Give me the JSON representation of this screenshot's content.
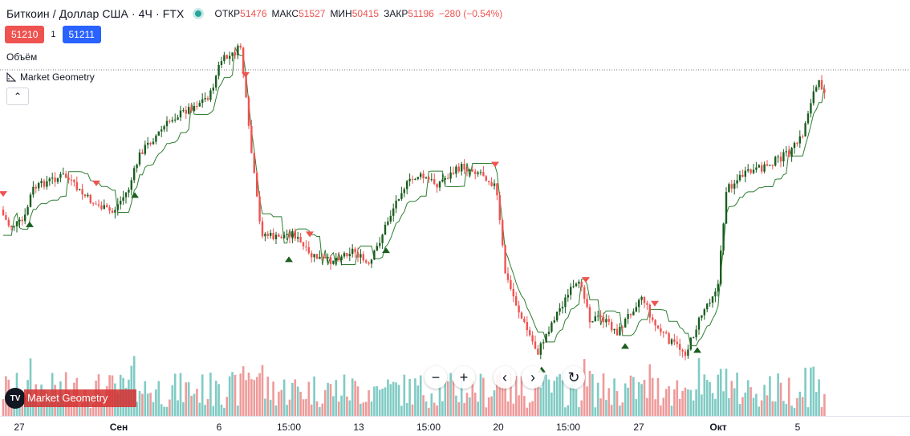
{
  "header": {
    "symbol": "Биткоин / Доллар США",
    "interval": "4Ч",
    "exchange": "FTX",
    "ohlc": [
      {
        "key": "ОТКР",
        "value": "51476"
      },
      {
        "key": "МАКС",
        "value": "51527"
      },
      {
        "key": "МИН",
        "value": "50415"
      },
      {
        "key": "ЗАКР",
        "value": "51196"
      }
    ],
    "change": "−280 (−0.54%)"
  },
  "trade": {
    "sell_price": "51210",
    "spread": "1",
    "buy_price": "51211"
  },
  "volume_label": "Объём",
  "indicator_label": "Market Geometry",
  "collapse_glyph": "⌃",
  "nav": {
    "zoom_out": "−",
    "zoom_in": "+",
    "scroll_left": "‹",
    "scroll_right": "›",
    "reset": "↻"
  },
  "badge": {
    "logo": "TV",
    "text": "Market Geometry"
  },
  "x_axis": [
    {
      "label": "27",
      "bold": false
    },
    {
      "label": "Сен",
      "bold": true
    },
    {
      "label": "6",
      "bold": false
    },
    {
      "label": "15:00",
      "bold": false
    },
    {
      "label": "13",
      "bold": false
    },
    {
      "label": "15:00",
      "bold": false
    },
    {
      "label": "20",
      "bold": false
    },
    {
      "label": "15:00",
      "bold": false
    },
    {
      "label": "27",
      "bold": false
    },
    {
      "label": "Окт",
      "bold": true
    },
    {
      "label": "5",
      "bold": false
    }
  ],
  "colors": {
    "up": "#1b5e20",
    "down": "#ef5350",
    "vol_up": "#80cbc4",
    "vol_down": "#ef9a9a",
    "trail_up": "#2e7d32",
    "trail_down": "#ef5350"
  },
  "chart_data": {
    "type": "candlestick",
    "series_shape": [
      [
        0,
        0.62
      ],
      [
        12,
        0.68
      ],
      [
        30,
        0.66
      ],
      [
        40,
        0.55
      ],
      [
        60,
        0.52
      ],
      [
        80,
        0.5
      ],
      [
        100,
        0.56
      ],
      [
        118,
        0.6
      ],
      [
        140,
        0.63
      ],
      [
        160,
        0.55
      ],
      [
        175,
        0.42
      ],
      [
        195,
        0.36
      ],
      [
        215,
        0.3
      ],
      [
        240,
        0.26
      ],
      [
        262,
        0.22
      ],
      [
        275,
        0.1
      ],
      [
        290,
        0.08
      ],
      [
        300,
        0.05
      ],
      [
        310,
        0.34
      ],
      [
        325,
        0.7
      ],
      [
        345,
        0.72
      ],
      [
        365,
        0.7
      ],
      [
        385,
        0.78
      ],
      [
        410,
        0.8
      ],
      [
        440,
        0.76
      ],
      [
        460,
        0.82
      ],
      [
        480,
        0.68
      ],
      [
        500,
        0.55
      ],
      [
        520,
        0.5
      ],
      [
        545,
        0.53
      ],
      [
        575,
        0.47
      ],
      [
        600,
        0.49
      ],
      [
        618,
        0.54
      ],
      [
        630,
        0.85
      ],
      [
        650,
        1.0
      ],
      [
        670,
        1.12
      ],
      [
        690,
        1.0
      ],
      [
        712,
        0.9
      ],
      [
        725,
        0.88
      ],
      [
        735,
        1.0
      ],
      [
        750,
        1.0
      ],
      [
        770,
        1.05
      ],
      [
        785,
        0.98
      ],
      [
        800,
        0.92
      ],
      [
        815,
        1.02
      ],
      [
        835,
        1.08
      ],
      [
        855,
        1.12
      ],
      [
        875,
        0.98
      ],
      [
        895,
        0.88
      ],
      [
        905,
        0.55
      ],
      [
        925,
        0.5
      ],
      [
        945,
        0.48
      ],
      [
        965,
        0.45
      ],
      [
        985,
        0.42
      ],
      [
        1000,
        0.36
      ],
      [
        1012,
        0.22
      ],
      [
        1020,
        0.18
      ],
      [
        1028,
        0.2
      ]
    ]
  }
}
